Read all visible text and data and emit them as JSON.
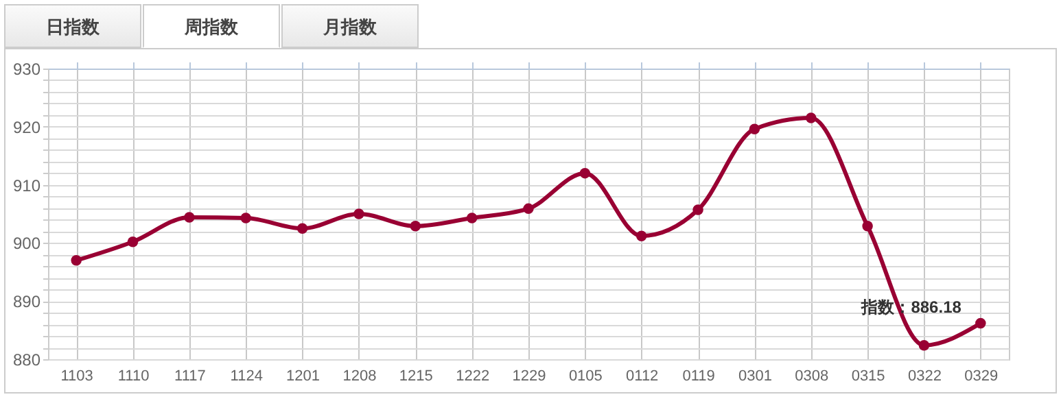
{
  "chart_data": {
    "type": "line",
    "categories": [
      "1103",
      "1110",
      "1117",
      "1124",
      "1201",
      "1208",
      "1215",
      "1222",
      "1229",
      "0105",
      "0112",
      "0119",
      "0301",
      "0308",
      "0315",
      "0322",
      "0329"
    ],
    "series": [
      {
        "color": "#990033",
        "values": [
          897.0,
          900.2,
          904.4,
          904.3,
          902.5,
          905.0,
          902.9,
          904.3,
          905.9,
          912.0,
          901.2,
          905.7,
          919.6,
          921.5,
          902.9,
          882.4,
          886.18
        ]
      }
    ],
    "ylim": [
      880,
      930
    ],
    "yticks": [
      880,
      {
        "value": 882,
        "label": null
      },
      {
        "value": 884,
        "label": null
      },
      {
        "value": 886,
        "label": null
      },
      {
        "value": 888,
        "label": null
      },
      890,
      {
        "value": 892,
        "label": null
      },
      {
        "value": 894,
        "label": null
      },
      {
        "value": 896,
        "label": null
      },
      {
        "value": 898,
        "label": null
      },
      900,
      {
        "value": 902,
        "label": null
      },
      {
        "value": 904,
        "label": null
      },
      {
        "value": 906,
        "label": null
      },
      {
        "value": 908,
        "label": null
      },
      910,
      {
        "value": 912,
        "label": null
      },
      {
        "value": 914,
        "label": null
      },
      {
        "value": 916,
        "label": null
      },
      {
        "value": 918,
        "label": null
      },
      920,
      {
        "value": 922,
        "label": null
      },
      {
        "value": 924,
        "label": null
      },
      {
        "value": 926,
        "label": null
      },
      {
        "value": 928,
        "label": null
      },
      930
    ],
    "grid": true,
    "marker": "circle",
    "line_style": "solid",
    "annotations": [
      "日指数",
      "周指数",
      "月指数",
      {
        "text": "指数：886.18",
        "x": "0329",
        "y": 886.18
      }
    ]
  }
}
